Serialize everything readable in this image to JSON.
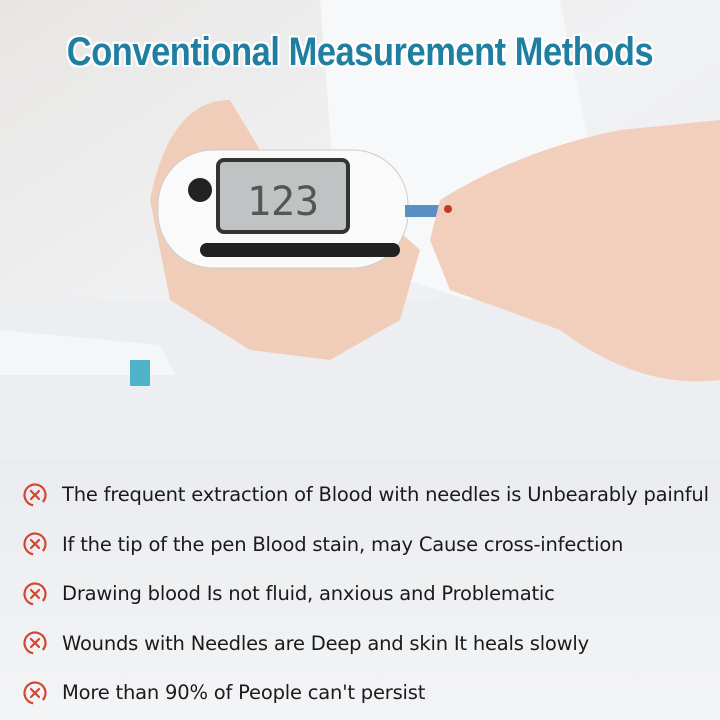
{
  "title": "Conventional Measurement Methods",
  "colors": {
    "title": "#1f7fa0",
    "icon": "#d6452f",
    "text": "#1a1a1a"
  },
  "meter_display": "123",
  "items": [
    {
      "icon": "x-circle-icon",
      "text": "The frequent extraction of Blood with needles is Unbearably painful"
    },
    {
      "icon": "x-circle-icon",
      "text": "If the tip of the pen Blood stain, may Cause cross-infection"
    },
    {
      "icon": "x-circle-icon",
      "text": "Drawing blood Is not fluid, anxious and Problematic"
    },
    {
      "icon": "x-circle-icon",
      "text": "Wounds with Needles are Deep and skin It heals slowly"
    },
    {
      "icon": "x-circle-icon",
      "text": "More than 90% of People can't persist"
    }
  ]
}
